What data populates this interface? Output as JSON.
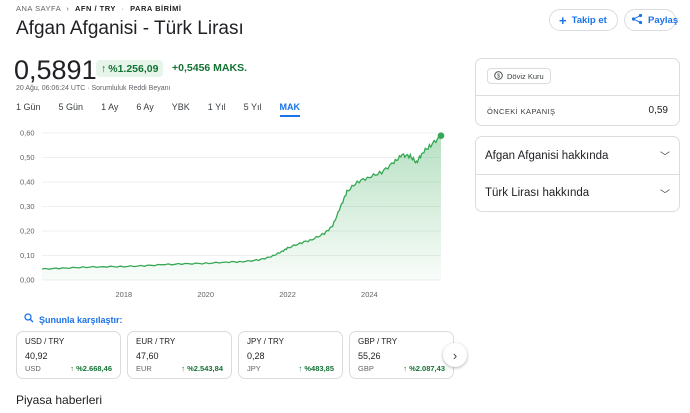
{
  "breadcrumb": {
    "home": "ANA SAYFA",
    "pair": "AFN / TRY",
    "category": "PARA BİRİMİ"
  },
  "title": "Afgan Afganisi - Türk Lirası",
  "actions": {
    "follow": "Takip et",
    "share": "Paylaş"
  },
  "quote": {
    "price": "0,5891",
    "change_percent": "%1.256,09",
    "change_abs": "+0,5456 MAKS.",
    "timestamp": "20 Ağu, 06:06:24 UTC · Sorumluluk Reddi Beyanı"
  },
  "ranges": [
    "1 Gün",
    "5 Gün",
    "1 Ay",
    "6 Ay",
    "YBK",
    "1 Yıl",
    "5 Yıl",
    "MAK"
  ],
  "active_range": "MAK",
  "chart_data": {
    "type": "area",
    "ylim": [
      0,
      0.6
    ],
    "y_ticks": [
      "0,00",
      "0,10",
      "0,20",
      "0,30",
      "0,40",
      "0,50",
      "0,60"
    ],
    "x_ticks": [
      "2018",
      "2020",
      "2022",
      "2024"
    ],
    "x_tick_years": [
      2018,
      2020,
      2022,
      2024
    ],
    "x_range_years": [
      2016.0,
      2025.75
    ],
    "series": [
      {
        "points": [
          [
            2016.0,
            0.045
          ],
          [
            2016.5,
            0.048
          ],
          [
            2017.0,
            0.052
          ],
          [
            2017.5,
            0.054
          ],
          [
            2018.0,
            0.055
          ],
          [
            2018.5,
            0.058
          ],
          [
            2019.0,
            0.063
          ],
          [
            2019.5,
            0.066
          ],
          [
            2020.0,
            0.068
          ],
          [
            2020.5,
            0.073
          ],
          [
            2020.9,
            0.075
          ],
          [
            2021.3,
            0.082
          ],
          [
            2021.6,
            0.095
          ],
          [
            2021.85,
            0.115
          ],
          [
            2022.0,
            0.13
          ],
          [
            2022.3,
            0.15
          ],
          [
            2022.6,
            0.165
          ],
          [
            2022.9,
            0.19
          ],
          [
            2023.1,
            0.22
          ],
          [
            2023.3,
            0.3
          ],
          [
            2023.45,
            0.36
          ],
          [
            2023.7,
            0.4
          ],
          [
            2024.0,
            0.42
          ],
          [
            2024.3,
            0.44
          ],
          [
            2024.6,
            0.48
          ],
          [
            2024.8,
            0.51
          ],
          [
            2025.0,
            0.505
          ],
          [
            2025.15,
            0.48
          ],
          [
            2025.3,
            0.52
          ],
          [
            2025.5,
            0.55
          ],
          [
            2025.75,
            0.589
          ]
        ]
      }
    ],
    "line_color": "#34a853",
    "fill_color": "#34a853",
    "grid": true
  },
  "compare": {
    "label": "Şununla karşılaştır:",
    "cards": [
      {
        "pair": "USD / TRY",
        "value": "40,92",
        "sub": "USD",
        "change": "%2.668,46"
      },
      {
        "pair": "EUR / TRY",
        "value": "47,60",
        "sub": "EUR",
        "change": "%2.543,84"
      },
      {
        "pair": "JPY / TRY",
        "value": "0,28",
        "sub": "JPY",
        "change": "%483,85"
      },
      {
        "pair": "GBP / TRY",
        "value": "55,26",
        "sub": "GBP",
        "change": "%2.087,43"
      }
    ]
  },
  "news": {
    "heading": "Piyasa haberleri"
  },
  "side": {
    "chip": "Döviz Kuru",
    "prev_close_label": "ÖNCEKİ KAPANIŞ",
    "prev_close_value": "0,59",
    "about": [
      "Afgan Afganisi hakkında",
      "Türk Lirası hakkında"
    ]
  },
  "colors": {
    "accent": "#1a73e8",
    "positive": "#137333",
    "positive_bg": "#e6f4ea"
  }
}
